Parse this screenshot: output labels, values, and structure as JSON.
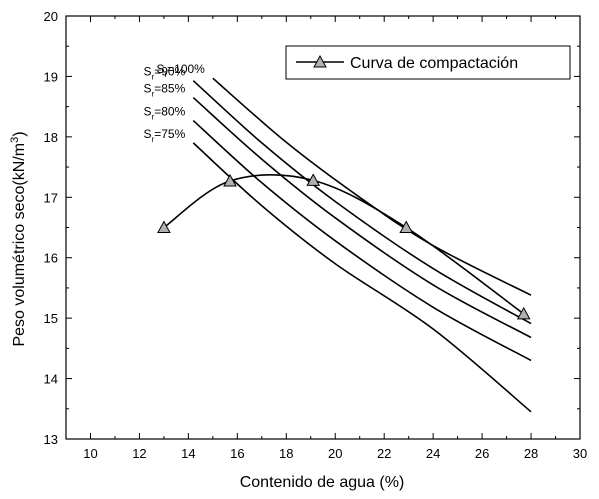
{
  "chart_data": {
    "type": "line",
    "title": "",
    "xlabel": "Contenido de agua (%)",
    "ylabel": "Peso volumétrico seco(kN/m",
    "ylabel_superscript": "3",
    "ylabel_close": ")",
    "xlim": [
      9,
      30
    ],
    "ylim": [
      13,
      20
    ],
    "xticks": [
      10,
      12,
      14,
      16,
      18,
      20,
      22,
      24,
      26,
      28,
      30
    ],
    "yticks": [
      13,
      14,
      15,
      16,
      17,
      18,
      19,
      20
    ],
    "grid": false,
    "legend_position": "top-right",
    "series": [
      {
        "name": "Curva de compactación",
        "marker": "triangle",
        "marker_fill": "#b0b0b0",
        "smooth": true,
        "x": [
          13.0,
          15.7,
          19.1,
          22.9,
          27.7
        ],
        "y": [
          16.5,
          17.27,
          17.28,
          16.5,
          15.07
        ]
      }
    ],
    "saturation_lines": [
      {
        "label_main": "S",
        "label_sub": "r",
        "label_rest": "=100%",
        "x": [
          15.0,
          18.0,
          21.0,
          24.0,
          28.0
        ],
        "y": [
          18.97,
          17.91,
          17.0,
          16.2,
          15.38
        ]
      },
      {
        "label_main": "S",
        "label_sub": "r",
        "label_rest": "=90%",
        "x": [
          14.2,
          17.0,
          20.0,
          24.0,
          28.0
        ],
        "y": [
          18.93,
          17.9,
          16.93,
          15.82,
          14.91
        ]
      },
      {
        "label_main": "S",
        "label_sub": "r",
        "label_rest": "=85%",
        "x": [
          14.2,
          17.0,
          20.0,
          24.0,
          28.0
        ],
        "y": [
          18.65,
          17.63,
          16.66,
          15.55,
          14.68
        ]
      },
      {
        "label_main": "S",
        "label_sub": "r",
        "label_rest": "=80%",
        "x": [
          14.2,
          17.0,
          20.0,
          24.0,
          28.0
        ],
        "y": [
          18.27,
          17.24,
          16.28,
          15.18,
          14.3
        ]
      },
      {
        "label_main": "S",
        "label_sub": "r",
        "label_rest": "=75%",
        "x": [
          14.2,
          17.0,
          20.0,
          24.0,
          28.0
        ],
        "y": [
          17.9,
          16.86,
          15.9,
          14.82,
          13.45
        ]
      }
    ],
    "colors": {
      "line": "#000000",
      "marker_fill": "#b0b0b0"
    }
  }
}
